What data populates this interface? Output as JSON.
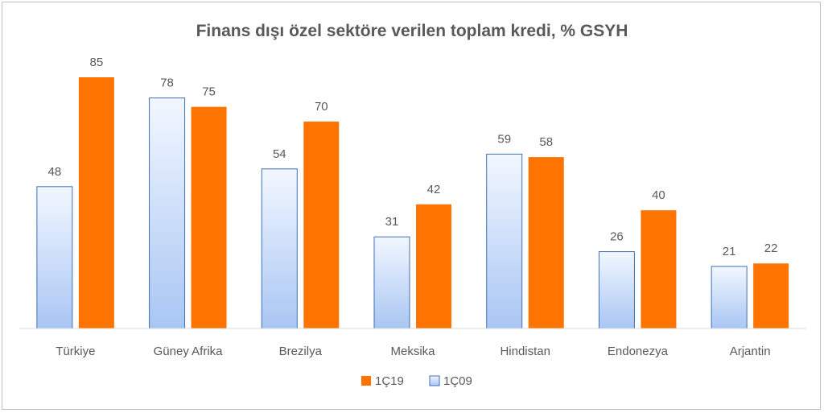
{
  "chart_data": {
    "type": "bar",
    "title": "Finans dışı özel sektöre verilen toplam kredi, % GSYH",
    "categories": [
      "Türkiye",
      "Güney Afrika",
      "Brezilya",
      "Meksika",
      "Hindistan",
      "Endonezya",
      "Arjantin"
    ],
    "series": [
      {
        "name": "1Ç09",
        "values": [
          48,
          78,
          54,
          31,
          59,
          26,
          21
        ],
        "color": "#c9dbf7",
        "stroke": "#3f6fb5"
      },
      {
        "name": "1Ç19",
        "values": [
          85,
          75,
          70,
          42,
          58,
          40,
          22
        ],
        "color": "#ff7300"
      }
    ],
    "legend_order": [
      "1Ç19",
      "1Ç09"
    ],
    "legend_position": "bottom",
    "ylim": [
      0,
      85
    ],
    "grid": false,
    "data_labels": true
  }
}
